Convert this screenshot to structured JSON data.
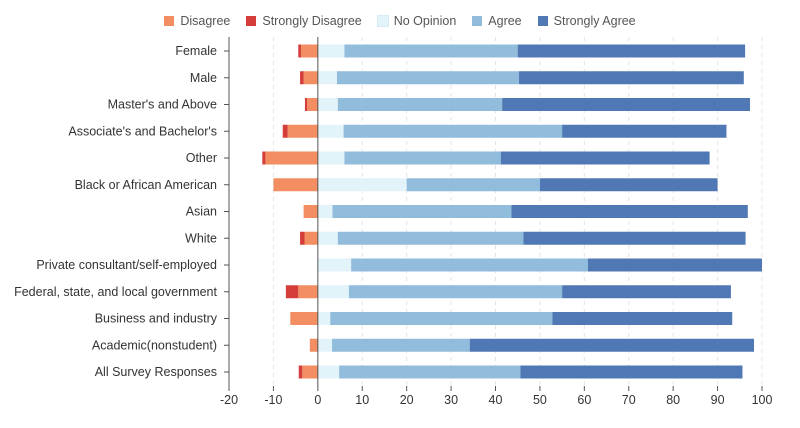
{
  "chart_data": {
    "type": "bar",
    "orientation": "horizontal",
    "stacked": true,
    "diverging": true,
    "categories": [
      "Female",
      "Male",
      "Master's and Above",
      "Associate's and Bachelor's",
      "Other",
      "Black or African American",
      "Asian",
      "White",
      "Private consultant/self-employed",
      "Federal, state, and local government",
      "Business and industry",
      "Academic(nonstudent)",
      "All Survey Responses"
    ],
    "series": [
      {
        "name": "Disagree",
        "color": "#f28e61",
        "side": "negative",
        "values": [
          3.8,
          3.2,
          2.4,
          6.8,
          11.8,
          10.0,
          3.2,
          3.0,
          0.0,
          4.4,
          6.2,
          1.8,
          3.5
        ]
      },
      {
        "name": "Strongly Disagree",
        "color": "#d43d3a",
        "side": "negative",
        "values": [
          0.6,
          0.8,
          0.5,
          1.1,
          0.7,
          0.0,
          0.0,
          1.0,
          0.0,
          2.8,
          0.0,
          0.0,
          0.8
        ]
      },
      {
        "name": "No Opinion",
        "color": "#e2f3fa",
        "side": "positive",
        "values": [
          6.0,
          4.3,
          4.5,
          5.8,
          6.0,
          20.0,
          3.3,
          4.5,
          7.5,
          7.0,
          2.8,
          3.2,
          4.8
        ]
      },
      {
        "name": "Agree",
        "color": "#92bcdc",
        "side": "positive",
        "values": [
          39.0,
          41.0,
          37.0,
          49.2,
          35.2,
          30.0,
          40.3,
          41.8,
          53.3,
          48.0,
          50.0,
          31.0,
          40.8
        ]
      },
      {
        "name": "Strongly Agree",
        "color": "#5078b4",
        "side": "positive",
        "values": [
          51.2,
          50.6,
          55.8,
          37.0,
          47.0,
          40.0,
          53.2,
          50.0,
          39.2,
          38.0,
          40.5,
          64.0,
          50.0
        ]
      }
    ],
    "xlim": [
      -20,
      100
    ],
    "xticks": [
      -20,
      -10,
      0,
      10,
      20,
      30,
      40,
      50,
      60,
      70,
      80,
      90,
      100
    ],
    "legend_position": "top",
    "grid": "vertical-dashed",
    "title": "",
    "xlabel": "",
    "ylabel": ""
  }
}
